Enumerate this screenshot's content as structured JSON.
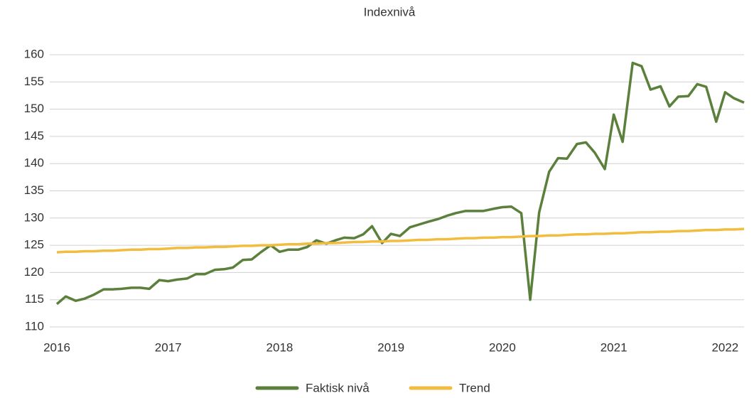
{
  "chart_data": {
    "type": "line",
    "title": "Indexnivå",
    "x": [
      2016,
      2016.08,
      2016.17,
      2016.25,
      2016.33,
      2016.42,
      2016.5,
      2016.58,
      2016.67,
      2016.75,
      2016.83,
      2016.92,
      2017,
      2017.08,
      2017.17,
      2017.25,
      2017.33,
      2017.42,
      2017.5,
      2017.58,
      2017.67,
      2017.75,
      2017.83,
      2017.92,
      2018,
      2018.08,
      2018.17,
      2018.25,
      2018.33,
      2018.42,
      2018.5,
      2018.58,
      2018.67,
      2018.75,
      2018.83,
      2018.92,
      2019,
      2019.08,
      2019.17,
      2019.25,
      2019.33,
      2019.42,
      2019.5,
      2019.58,
      2019.67,
      2019.75,
      2019.83,
      2019.92,
      2020,
      2020.08,
      2020.17,
      2020.25,
      2020.33,
      2020.42,
      2020.5,
      2020.58,
      2020.67,
      2020.75,
      2020.83,
      2020.92,
      2021,
      2021.08,
      2021.17,
      2021.25,
      2021.33,
      2021.42,
      2021.5,
      2021.58,
      2021.67,
      2021.75,
      2021.83,
      2021.92,
      2022,
      2022.08,
      2022.17
    ],
    "series": [
      {
        "name": "Faktisk nivå",
        "color": "#5b803b",
        "values": [
          114.2,
          115.6,
          114.8,
          115.2,
          115.9,
          116.9,
          116.9,
          117.0,
          117.2,
          117.2,
          117.0,
          118.6,
          118.4,
          118.7,
          118.9,
          119.7,
          119.7,
          120.5,
          120.6,
          120.9,
          122.3,
          122.4,
          123.7,
          125.0,
          123.8,
          124.2,
          124.2,
          124.7,
          125.9,
          125.3,
          125.9,
          126.4,
          126.3,
          127.0,
          128.5,
          125.4,
          127.1,
          126.7,
          128.3,
          128.8,
          129.3,
          129.8,
          130.4,
          130.9,
          131.3,
          131.3,
          131.3,
          131.7,
          132.0,
          132.1,
          130.9,
          115.0,
          131.0,
          138.5,
          141.0,
          140.9,
          143.6,
          143.9,
          142.0,
          139.0,
          149.0,
          144.0,
          158.5,
          157.9,
          153.6,
          154.2,
          150.5,
          152.3,
          152.4,
          154.6,
          154.1,
          147.7,
          153.1,
          152.0,
          151.2
        ]
      },
      {
        "name": "Trend",
        "color": "#f2bd3e",
        "values": [
          123.7,
          123.8,
          123.8,
          123.9,
          123.9,
          124.0,
          124.0,
          124.1,
          124.2,
          124.2,
          124.3,
          124.3,
          124.4,
          124.5,
          124.5,
          124.6,
          124.6,
          124.7,
          124.7,
          124.8,
          124.9,
          124.9,
          125.0,
          125.0,
          125.1,
          125.2,
          125.2,
          125.3,
          125.3,
          125.4,
          125.4,
          125.5,
          125.6,
          125.6,
          125.7,
          125.7,
          125.8,
          125.8,
          125.9,
          126.0,
          126.0,
          126.1,
          126.1,
          126.2,
          126.3,
          126.3,
          126.4,
          126.4,
          126.5,
          126.5,
          126.6,
          126.7,
          126.7,
          126.8,
          126.8,
          126.9,
          127.0,
          127.0,
          127.1,
          127.1,
          127.2,
          127.2,
          127.3,
          127.4,
          127.4,
          127.5,
          127.5,
          127.6,
          127.6,
          127.7,
          127.8,
          127.8,
          127.9,
          127.9,
          128.0
        ]
      }
    ],
    "xlim": [
      2016,
      2022.17
    ],
    "xticks": [
      2016,
      2017,
      2018,
      2019,
      2020,
      2021,
      2022
    ],
    "ylim": [
      110,
      160
    ],
    "yticks": [
      110,
      115,
      120,
      125,
      130,
      135,
      140,
      145,
      150,
      155,
      160
    ],
    "grid": true,
    "legend": "bottom"
  }
}
